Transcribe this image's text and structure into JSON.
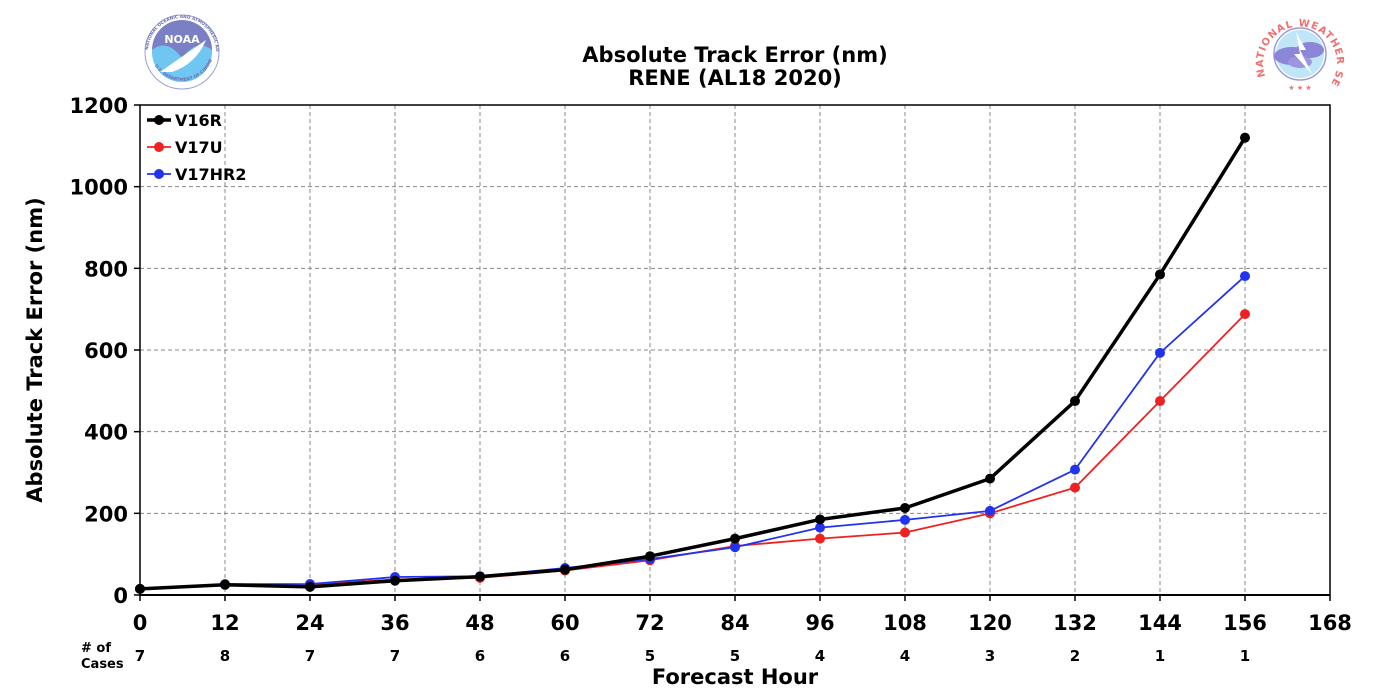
{
  "chart_data": {
    "type": "line",
    "title": "Absolute Track Error (nm)",
    "subtitle": "RENE (AL18 2020)",
    "xlabel": "Forecast Hour",
    "ylabel": "Absolute Track Error (nm)",
    "xlim": [
      0,
      168
    ],
    "ylim": [
      0,
      1200
    ],
    "xticks": [
      0,
      12,
      24,
      36,
      48,
      60,
      72,
      84,
      96,
      108,
      120,
      132,
      144,
      156,
      168
    ],
    "yticks": [
      0,
      200,
      400,
      600,
      800,
      1000,
      1200
    ],
    "grid": true,
    "legend_position": "top-left",
    "x": [
      0,
      12,
      24,
      36,
      48,
      60,
      72,
      84,
      96,
      108,
      120,
      132,
      144,
      156
    ],
    "series": [
      {
        "name": "V16R",
        "color": "#000000",
        "values": [
          15,
          25,
          20,
          35,
          45,
          62,
          95,
          138,
          185,
          213,
          285,
          475,
          785,
          1120
        ]
      },
      {
        "name": "V17U",
        "color": "#ee2222",
        "values": [
          15,
          27,
          26,
          38,
          42,
          60,
          85,
          120,
          138,
          153,
          200,
          263,
          475,
          688
        ]
      },
      {
        "name": "V17HR2",
        "color": "#2233ee",
        "values": [
          15,
          26,
          27,
          44,
          46,
          66,
          88,
          117,
          165,
          184,
          206,
          307,
          593,
          781
        ]
      }
    ],
    "cases_label_line1": "# of",
    "cases_label_line2": "Cases",
    "cases": [
      7,
      8,
      7,
      7,
      6,
      6,
      5,
      5,
      4,
      4,
      3,
      2,
      1,
      1
    ]
  },
  "logos": {
    "noaa": {
      "text": "NOAA",
      "ring_text": "NATIONAL OCEANIC AND ATMOSPHERIC ADMINISTRATION",
      "bottom_text": "U.S. DEPARTMENT OF COMMERCE"
    },
    "nws": {
      "ring_text": "NATIONAL WEATHER SERVICE"
    }
  }
}
